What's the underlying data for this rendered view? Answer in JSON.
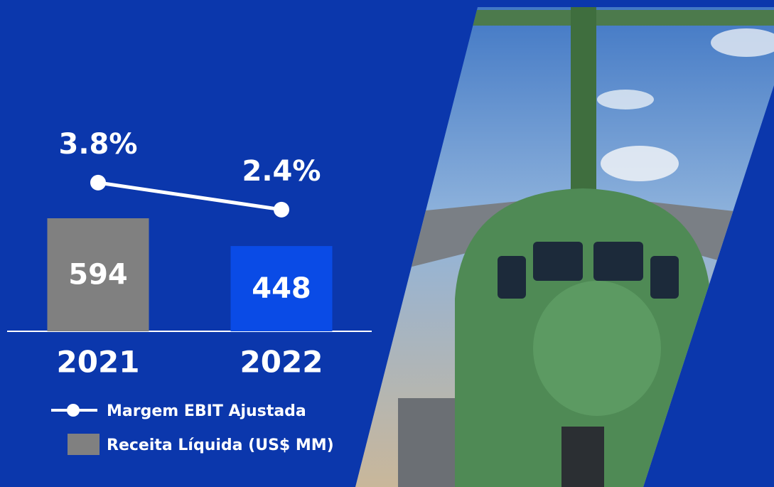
{
  "chart_data": {
    "type": "bar-line",
    "categories": [
      "2021",
      "2022"
    ],
    "series": [
      {
        "name": "Receita Líquida (US$ MM)",
        "type": "bar",
        "color": "#808080",
        "colors": [
          "#808080",
          "#0a4be6"
        ],
        "values": [
          594,
          448
        ]
      },
      {
        "name": "Margem EBIT Ajustada",
        "type": "line",
        "color": "#ffffff",
        "axis": "y2",
        "values": [
          3.8,
          2.4
        ],
        "value_labels": [
          "3.8%",
          "2.4%"
        ]
      }
    ]
  }
}
